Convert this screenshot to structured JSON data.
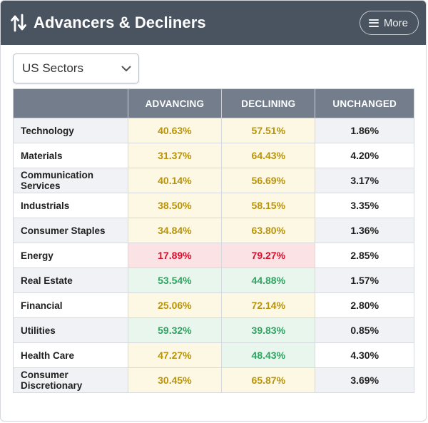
{
  "header": {
    "title": "Advancers & Decliners",
    "icon": "sort-arrows-icon",
    "more_label": "More"
  },
  "filter": {
    "selected": "US Sectors"
  },
  "table": {
    "columns": [
      "",
      "ADVANCING",
      "DECLINING",
      "UNCHANGED"
    ],
    "rows": [
      {
        "name": "Technology",
        "advancing": "40.63%",
        "declining": "57.51%",
        "unchanged": "1.86%",
        "adv_status": "neutral",
        "dec_status": "neutral"
      },
      {
        "name": "Materials",
        "advancing": "31.37%",
        "declining": "64.43%",
        "unchanged": "4.20%",
        "adv_status": "neutral",
        "dec_status": "neutral"
      },
      {
        "name": "Communication Services",
        "advancing": "40.14%",
        "declining": "56.69%",
        "unchanged": "3.17%",
        "adv_status": "neutral",
        "dec_status": "neutral"
      },
      {
        "name": "Industrials",
        "advancing": "38.50%",
        "declining": "58.15%",
        "unchanged": "3.35%",
        "adv_status": "neutral",
        "dec_status": "neutral"
      },
      {
        "name": "Consumer Staples",
        "advancing": "34.84%",
        "declining": "63.80%",
        "unchanged": "1.36%",
        "adv_status": "neutral",
        "dec_status": "neutral"
      },
      {
        "name": "Energy",
        "advancing": "17.89%",
        "declining": "79.27%",
        "unchanged": "2.85%",
        "adv_status": "negative",
        "dec_status": "negative"
      },
      {
        "name": "Real Estate",
        "advancing": "53.54%",
        "declining": "44.88%",
        "unchanged": "1.57%",
        "adv_status": "positive",
        "dec_status": "positive"
      },
      {
        "name": "Financial",
        "advancing": "25.06%",
        "declining": "72.14%",
        "unchanged": "2.80%",
        "adv_status": "neutral",
        "dec_status": "neutral"
      },
      {
        "name": "Utilities",
        "advancing": "59.32%",
        "declining": "39.83%",
        "unchanged": "0.85%",
        "adv_status": "positive",
        "dec_status": "positive"
      },
      {
        "name": "Health Care",
        "advancing": "47.27%",
        "declining": "48.43%",
        "unchanged": "4.30%",
        "adv_status": "neutral",
        "dec_status": "positive"
      },
      {
        "name": "Consumer Discretionary",
        "advancing": "30.45%",
        "declining": "65.87%",
        "unchanged": "3.69%",
        "adv_status": "neutral",
        "dec_status": "neutral"
      }
    ]
  },
  "colors": {
    "header_bg": "#4a5360",
    "table_header_bg": "#737d8b",
    "neutral_text": "#b8930c",
    "neutral_bg": "#fdf8e4",
    "negative_text": "#d7102c",
    "negative_bg": "#fbe3e5",
    "positive_text": "#2ea460",
    "positive_bg": "#e9f6ee"
  }
}
